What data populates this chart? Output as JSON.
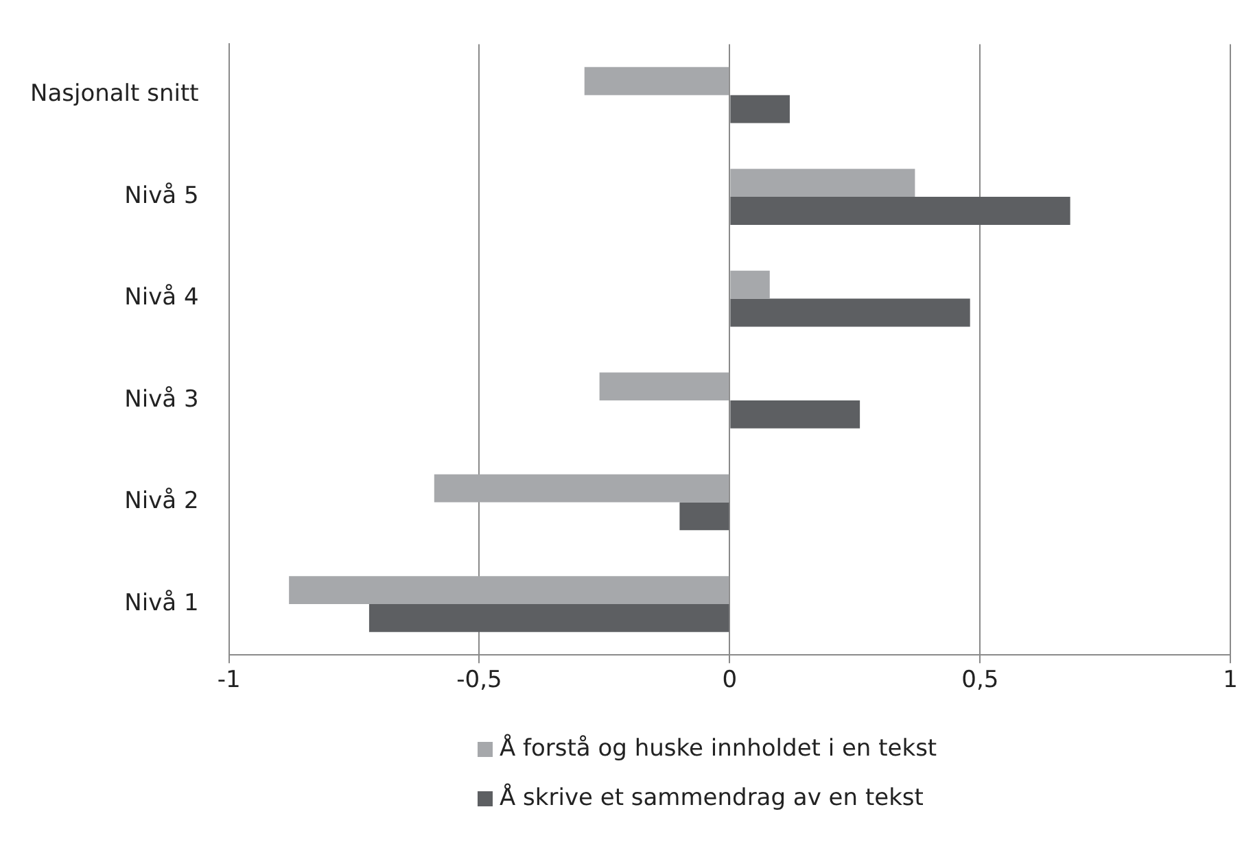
{
  "chart_data": {
    "type": "bar",
    "orientation": "horizontal",
    "categories": [
      "Nasjonalt snitt",
      "Nivå 5",
      "Nivå 4",
      "Nivå 3",
      "Nivå 2",
      "Nivå 1"
    ],
    "series": [
      {
        "name": "Å forstå og huske innholdet i en tekst",
        "color": "#a6a8ab",
        "values": [
          -0.29,
          0.37,
          0.08,
          -0.26,
          -0.59,
          -0.88
        ]
      },
      {
        "name": "Å skrive et sammendrag av en tekst",
        "color": "#5d5f62",
        "values": [
          0.12,
          0.68,
          0.48,
          0.26,
          -0.1,
          -0.72
        ]
      }
    ],
    "xlim": [
      -1,
      1
    ],
    "xticks": [
      {
        "value": -1,
        "label": "-1"
      },
      {
        "value": -0.5,
        "label": "-0,5"
      },
      {
        "value": 0,
        "label": "0"
      },
      {
        "value": 0.5,
        "label": "0,5"
      },
      {
        "value": 1,
        "label": "1"
      }
    ],
    "grid": "x",
    "legend": "bottom"
  }
}
